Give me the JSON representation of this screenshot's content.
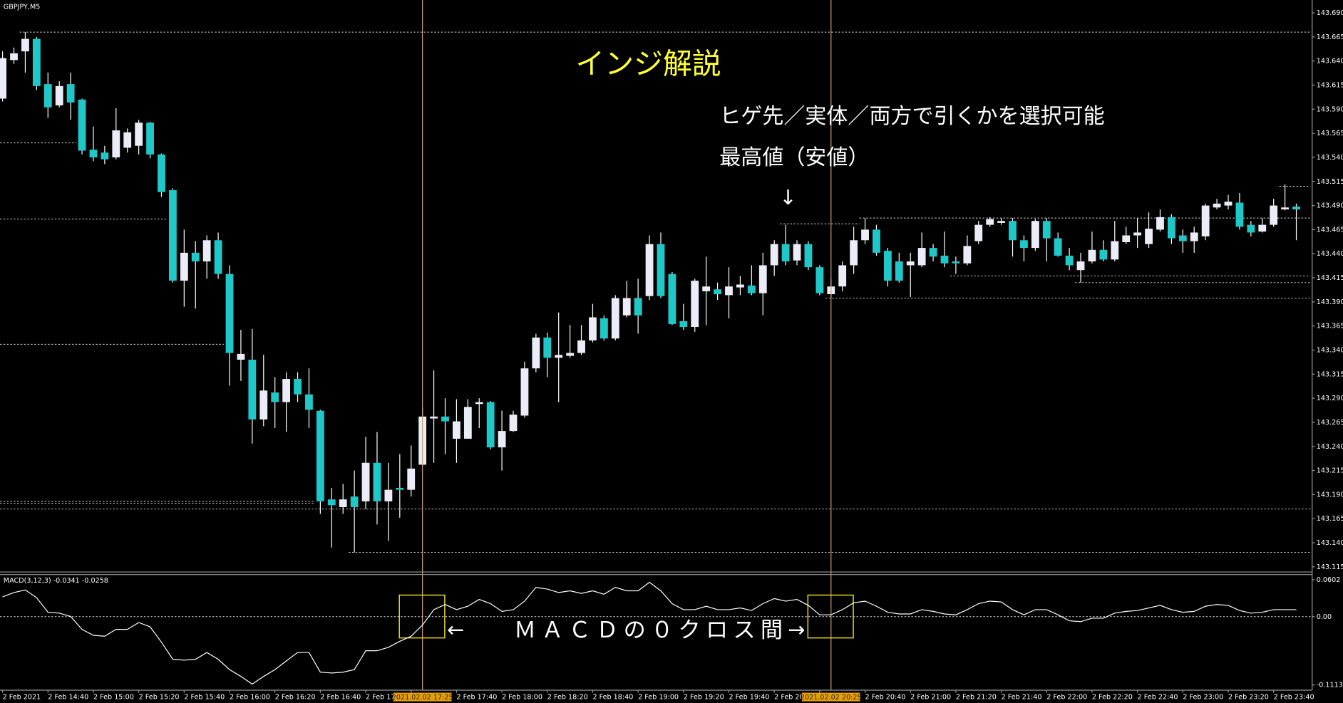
{
  "chart_data": [
    {
      "type": "candlestick",
      "title": "GBPJPY,M5",
      "categories": [
        "2 Feb 2021",
        null,
        null,
        null,
        "2 Feb 14:40",
        null,
        null,
        null,
        "2 Feb 15:00",
        null,
        null,
        null,
        "2 Feb 15:20",
        null,
        null,
        null,
        "2 Feb 15:40",
        null,
        null,
        null,
        "2 Feb 16:00",
        null,
        null,
        null,
        "2 Feb 16:20",
        null,
        null,
        null,
        "2 Feb 16:40",
        null,
        null,
        null,
        "2 Feb 17:00",
        null,
        null,
        null,
        "2 Feb 17:20",
        null,
        null,
        null,
        "2 Feb 17:40",
        null,
        null,
        null,
        "2 Feb 18:00",
        null,
        null,
        null,
        "2 Feb 18:20",
        null,
        null,
        null,
        "2 Feb 18:40",
        null,
        null,
        null,
        "2 Feb 19:00",
        null,
        null,
        null,
        "2 Feb 19:20",
        null,
        null,
        null,
        "2 Feb 19:40",
        null,
        null,
        null,
        "2 Feb 20:00",
        null,
        null,
        null,
        "2 Feb 20:20",
        null,
        null,
        null,
        "2 Feb 20:40",
        null,
        null,
        null,
        "2 Feb 21:00",
        null,
        null,
        null,
        "2 Feb 21:20",
        null,
        null,
        null,
        "2 Feb 21:40",
        null,
        null,
        null,
        "2 Feb 22:00",
        null,
        null,
        null,
        "2 Feb 22:20",
        null,
        null,
        null,
        "2 Feb 22:40",
        null,
        null,
        null,
        "2 Feb 23:00",
        null,
        null,
        null,
        "2 Feb 23:20",
        null,
        null,
        null,
        "2 Feb 23:40",
        null,
        null
      ],
      "open": [
        143.601,
        143.641,
        143.65,
        143.663,
        143.616,
        143.594,
        143.616,
        143.6,
        143.548,
        143.545,
        143.54,
        143.55,
        143.552,
        143.576,
        143.543,
        143.506,
        143.412,
        143.441,
        143.432,
        143.454,
        143.419,
        143.33,
        143.33,
        143.268,
        143.296,
        143.286,
        143.31,
        143.294,
        143.277,
        143.185,
        143.177,
        143.188,
        143.183,
        143.223,
        143.183,
        143.197,
        143.195,
        143.221,
        143.269,
        143.271,
        143.248,
        143.248,
        143.284,
        143.286,
        143.239,
        143.256,
        143.272,
        143.321,
        143.353,
        143.332,
        143.334,
        143.337,
        143.35,
        143.373,
        143.352,
        143.376,
        143.394,
        143.396,
        143.45,
        143.419,
        143.37,
        143.364,
        143.401,
        143.403,
        143.397,
        143.405,
        143.407,
        143.399,
        143.428,
        143.45,
        143.433,
        143.45,
        143.426,
        143.398,
        143.406,
        143.428,
        143.454,
        143.465,
        143.443,
        143.432,
        143.428,
        143.428,
        143.446,
        143.438,
        143.432,
        143.43,
        143.453,
        143.47,
        143.472,
        143.474,
        143.454,
        143.446,
        143.474,
        143.456,
        143.438,
        143.423,
        143.432,
        143.444,
        143.434,
        143.452,
        143.459,
        143.45,
        143.465,
        143.478,
        143.459,
        143.453,
        143.458,
        143.488,
        143.49,
        143.493,
        143.47,
        143.463,
        143.47,
        143.486,
        143.489
      ],
      "high": [
        143.65,
        143.654,
        143.67,
        143.665,
        143.628,
        143.619,
        143.628,
        143.601,
        143.572,
        143.552,
        143.591,
        143.57,
        143.579,
        143.577,
        143.544,
        143.508,
        143.465,
        143.453,
        143.459,
        143.462,
        143.428,
        143.361,
        143.362,
        143.335,
        143.312,
        143.317,
        143.317,
        143.321,
        143.278,
        143.197,
        143.201,
        143.215,
        143.25,
        143.255,
        143.223,
        143.232,
        143.241,
        143.281,
        143.319,
        143.29,
        143.289,
        143.289,
        143.29,
        143.287,
        143.277,
        143.277,
        143.328,
        143.357,
        143.358,
        143.379,
        143.366,
        143.366,
        143.388,
        143.376,
        143.397,
        143.412,
        143.414,
        143.459,
        143.462,
        143.421,
        143.388,
        143.414,
        143.437,
        143.41,
        143.426,
        143.417,
        143.428,
        143.441,
        143.454,
        143.47,
        143.454,
        143.453,
        143.428,
        143.414,
        143.432,
        143.468,
        143.477,
        143.47,
        143.446,
        143.441,
        143.441,
        143.462,
        143.45,
        143.463,
        143.437,
        143.459,
        143.474,
        143.478,
        143.477,
        143.477,
        143.459,
        143.476,
        143.477,
        143.462,
        143.446,
        143.441,
        143.463,
        143.454,
        143.474,
        143.468,
        143.477,
        143.483,
        143.486,
        143.481,
        143.465,
        143.468,
        143.492,
        143.497,
        143.501,
        143.503,
        143.474,
        143.477,
        143.497,
        143.512,
        143.492
      ],
      "low": [
        143.598,
        143.637,
        143.628,
        143.61,
        143.581,
        143.592,
        143.579,
        143.543,
        143.536,
        143.533,
        143.538,
        143.545,
        143.543,
        143.539,
        143.499,
        143.41,
        143.385,
        143.383,
        143.414,
        143.414,
        143.303,
        143.308,
        143.243,
        143.261,
        143.259,
        143.255,
        143.286,
        143.259,
        143.17,
        143.135,
        143.17,
        143.13,
        143.175,
        143.159,
        143.142,
        143.166,
        143.188,
        143.219,
        143.223,
        143.232,
        143.223,
        143.248,
        143.259,
        143.237,
        143.215,
        143.255,
        143.27,
        143.317,
        143.312,
        143.286,
        143.332,
        143.335,
        143.348,
        143.35,
        143.35,
        143.374,
        143.357,
        143.392,
        143.394,
        143.366,
        143.361,
        143.359,
        143.366,
        143.392,
        143.373,
        143.397,
        143.397,
        143.376,
        143.417,
        143.428,
        143.428,
        143.423,
        143.397,
        143.394,
        143.401,
        143.419,
        143.45,
        143.438,
        143.406,
        143.41,
        143.395,
        143.426,
        143.432,
        143.426,
        143.419,
        143.428,
        143.45,
        143.468,
        143.47,
        143.437,
        143.432,
        143.443,
        143.432,
        143.437,
        143.423,
        143.41,
        143.43,
        143.432,
        143.432,
        143.45,
        143.446,
        143.446,
        143.463,
        143.45,
        143.441,
        143.441,
        143.454,
        143.486,
        143.486,
        143.465,
        143.458,
        143.462,
        143.468,
        143.485,
        143.454
      ],
      "close": [
        143.643,
        143.648,
        143.663,
        143.614,
        143.592,
        143.614,
        143.597,
        143.547,
        143.54,
        143.538,
        143.568,
        143.566,
        143.576,
        143.543,
        143.504,
        143.412,
        143.441,
        143.432,
        143.454,
        143.419,
        143.337,
        143.336,
        143.268,
        143.298,
        143.286,
        143.31,
        143.294,
        143.278,
        143.183,
        143.179,
        143.185,
        143.177,
        143.223,
        143.183,
        143.195,
        143.195,
        143.217,
        143.271,
        143.271,
        143.266,
        143.266,
        143.281,
        143.286,
        143.239,
        143.256,
        143.273,
        143.321,
        143.353,
        143.332,
        143.335,
        143.337,
        143.35,
        143.374,
        143.352,
        143.394,
        143.394,
        143.376,
        143.45,
        143.396,
        143.367,
        143.364,
        143.412,
        143.406,
        143.398,
        143.406,
        143.408,
        143.399,
        143.428,
        143.45,
        143.432,
        143.45,
        143.426,
        143.399,
        143.406,
        143.428,
        143.454,
        143.465,
        143.441,
        143.412,
        143.412,
        143.432,
        143.446,
        143.437,
        143.43,
        143.43,
        143.448,
        143.47,
        143.476,
        143.474,
        143.454,
        143.446,
        143.474,
        143.456,
        143.438,
        143.428,
        143.432,
        143.444,
        143.434,
        143.453,
        143.459,
        143.462,
        143.466,
        143.478,
        143.456,
        143.453,
        143.462,
        143.49,
        143.492,
        143.494,
        143.468,
        143.462,
        143.47,
        143.49,
        143.488,
        143.486
      ],
      "up_color": "#ececf8",
      "down_color": "#1ec8c8",
      "wick_color": "#ffffff",
      "ylim": [
        143.115,
        143.69
      ],
      "yticks": [
        {
          "value": 143.69,
          "label": "143.690"
        },
        143.665,
        {
          "value": 143.64,
          "label": "143.640"
        },
        143.615,
        {
          "value": 143.59,
          "label": "143.590"
        },
        143.565,
        {
          "value": 143.54,
          "label": "143.540"
        },
        143.515,
        {
          "value": 143.49,
          "label": "143.490"
        },
        143.465,
        {
          "value": 143.44,
          "label": "143.440"
        },
        143.415,
        {
          "value": 143.39,
          "label": "143.390"
        },
        143.365,
        {
          "value": 143.34,
          "label": "143.340"
        },
        143.315,
        {
          "value": 143.29,
          "label": "143.290"
        },
        143.265,
        {
          "value": 143.24,
          "label": "143.240"
        },
        143.215,
        {
          "value": 143.19,
          "label": "143.190"
        },
        143.165,
        {
          "value": 143.14,
          "label": "143.140"
        },
        143.115
      ],
      "levels": [
        {
          "value": 143.67,
          "from": 2,
          "to": 114
        },
        {
          "value": 143.555,
          "from": 0,
          "to": 7
        },
        {
          "value": 143.476,
          "from": 0,
          "to": 15
        },
        {
          "value": 143.346,
          "from": 0,
          "to": 20
        },
        {
          "value": 143.183,
          "from": 0,
          "to": 28
        },
        {
          "value": 143.181,
          "from": 0,
          "to": 28
        },
        {
          "value": 143.175,
          "from": 0,
          "to": 114
        },
        {
          "value": 143.13,
          "from": 31,
          "to": 114
        },
        {
          "value": 143.471,
          "from": 69,
          "to": 76
        },
        {
          "value": 143.477,
          "from": 76,
          "to": 114
        },
        {
          "value": 143.394,
          "from": 73,
          "to": 114
        },
        {
          "value": 143.417,
          "from": 84,
          "to": 114
        },
        {
          "value": 143.41,
          "from": 95,
          "to": 114
        },
        {
          "value": 143.51,
          "from": 113,
          "to": 114
        }
      ],
      "markers": [
        {
          "index": 37,
          "label": "2021.02.02 17:25"
        },
        {
          "index": 73,
          "label": "2021.02.02 20:25"
        }
      ],
      "annotations": [
        "インジ解説",
        "ヒゲ先／実体／両方で引くかを選択可能",
        "最高値（安値）",
        "↓",
        "←",
        "ＭＡＣＤの０クロス間",
        "→"
      ]
    },
    {
      "type": "line",
      "title": "MACD(3,12,3) -0.0341 -0.0258",
      "color": "#ffffff",
      "values": [
        0.0323,
        0.0393,
        0.0435,
        0.0309,
        0.0072,
        0.0058,
        0.0003,
        -0.0207,
        -0.0304,
        -0.0318,
        -0.0207,
        -0.0207,
        -0.0095,
        -0.0165,
        -0.0416,
        -0.0694,
        -0.0708,
        -0.0694,
        -0.0583,
        -0.0694,
        -0.0862,
        -0.0973,
        -0.1099,
        -0.0973,
        -0.0862,
        -0.0722,
        -0.0583,
        -0.0583,
        -0.0904,
        -0.0917,
        -0.0904,
        -0.0862,
        -0.0555,
        -0.0555,
        -0.0499,
        -0.0402,
        -0.0318,
        -0.0137,
        0.0114,
        0.0198,
        0.0114,
        0.017,
        0.0281,
        0.0212,
        0.0086,
        0.0114,
        0.0253,
        0.0477,
        0.0449,
        0.0393,
        0.0421,
        0.0379,
        0.0421,
        0.0365,
        0.0477,
        0.0421,
        0.0421,
        0.056,
        0.0421,
        0.0212,
        0.0114,
        0.0114,
        0.017,
        0.0114,
        0.0114,
        0.0142,
        0.01,
        0.0212,
        0.0295,
        0.0253,
        0.0281,
        0.0184,
        0.003,
        0.003,
        0.0114,
        0.0226,
        0.0253,
        0.017,
        0.0072,
        0.0044,
        0.0044,
        0.0114,
        0.0086,
        0.0044,
        0.003,
        0.0114,
        0.0212,
        0.0253,
        0.024,
        0.0114,
        0.003,
        0.0114,
        0.0114,
        0.003,
        -0.0067,
        -0.0081,
        -0.0025,
        -0.0025,
        0.0058,
        0.0086,
        0.01,
        0.0142,
        0.0184,
        0.0114,
        0.0072,
        0.0086,
        0.017,
        0.0198,
        0.0184,
        0.01,
        0.0058,
        0.0072,
        0.0114,
        0.0114,
        0.0114
      ],
      "ylim": [
        -0.1113,
        0.0602
      ],
      "yticks": [
        0.0602,
        {
          "value": 0,
          "label": "0.00"
        },
        -0.1113
      ],
      "level_lines": [
        0
      ]
    }
  ]
}
